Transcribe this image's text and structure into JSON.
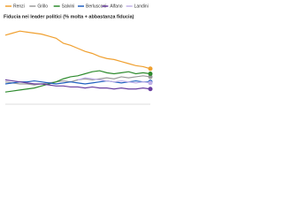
{
  "chart_data": {
    "type": "line",
    "title": "Fiducia nei leader politici (% molta + abbastanza fiducia)",
    "categories": [
      null,
      null,
      null,
      null,
      null,
      null,
      null,
      null,
      null,
      null,
      null,
      null,
      null,
      null,
      null,
      null,
      null,
      null,
      null,
      null,
      null
    ],
    "ylim": [
      0,
      80
    ],
    "series": [
      {
        "name": "Renzi",
        "color": "#f0a030",
        "values": [
          68,
          70,
          72,
          71,
          70,
          69,
          67,
          65,
          60,
          58,
          55,
          52,
          50,
          47,
          45,
          44,
          42,
          40,
          38,
          37,
          35
        ]
      },
      {
        "name": "Grillo",
        "color": "#9a9a9a",
        "values": [
          22,
          21,
          20,
          20,
          19,
          20,
          21,
          22,
          23,
          22,
          24,
          25,
          24,
          25,
          26,
          25,
          27,
          26,
          27,
          28,
          27
        ]
      },
      {
        "name": "Salvini",
        "color": "#2e8b2e",
        "values": [
          12,
          13,
          14,
          15,
          16,
          18,
          20,
          22,
          25,
          27,
          28,
          30,
          32,
          33,
          31,
          30,
          31,
          32,
          30,
          31,
          30
        ]
      },
      {
        "name": "Berlusconi",
        "color": "#2060c0",
        "values": [
          20,
          21,
          22,
          22,
          23,
          22,
          21,
          20,
          21,
          22,
          21,
          20,
          21,
          22,
          23,
          22,
          21,
          22,
          23,
          22,
          22
        ]
      },
      {
        "name": "Alfano",
        "color": "#6a3fa0",
        "values": [
          24,
          23,
          22,
          21,
          20,
          20,
          19,
          18,
          18,
          17,
          17,
          16,
          17,
          16,
          16,
          15,
          16,
          15,
          15,
          16,
          15
        ]
      },
      {
        "name": "Landini",
        "color": "#c0b0e8",
        "values": [
          null,
          null,
          null,
          null,
          null,
          null,
          null,
          null,
          null,
          null,
          24,
          26,
          25,
          24,
          23,
          22,
          23,
          22,
          21,
          22,
          21
        ]
      }
    ]
  }
}
